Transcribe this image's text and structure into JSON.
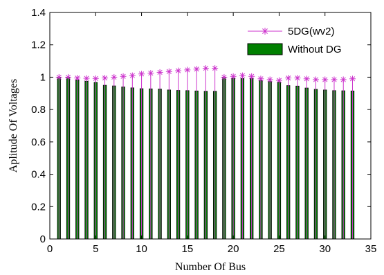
{
  "chart_data": {
    "type": "bar",
    "title": "",
    "xlabel": "Number Of Bus",
    "ylabel": "Aplitude Of Voltages",
    "xlim": [
      0,
      35
    ],
    "ylim": [
      0,
      1.4
    ],
    "xticks": [
      0,
      5,
      10,
      15,
      20,
      25,
      30,
      35
    ],
    "yticks": [
      0,
      0.2,
      0.4,
      0.6,
      0.8,
      1,
      1.2,
      1.4
    ],
    "grid": false,
    "legend_position": "top-right",
    "x": [
      1,
      2,
      3,
      4,
      5,
      6,
      7,
      8,
      9,
      10,
      11,
      12,
      13,
      14,
      15,
      16,
      17,
      18,
      19,
      20,
      21,
      22,
      23,
      24,
      25,
      26,
      27,
      28,
      29,
      30,
      31,
      32,
      33
    ],
    "series": [
      {
        "name": "5DG(wv2)",
        "kind": "stem",
        "color": "#cc33cc",
        "marker": "asterisk",
        "values": [
          1.0,
          1.0,
          0.995,
          0.993,
          0.992,
          0.995,
          1.0,
          1.005,
          1.01,
          1.02,
          1.025,
          1.03,
          1.035,
          1.04,
          1.045,
          1.05,
          1.055,
          1.055,
          1.0,
          1.005,
          1.01,
          1.005,
          0.99,
          0.985,
          0.98,
          0.995,
          0.995,
          0.99,
          0.985,
          0.985,
          0.985,
          0.985,
          0.99
        ]
      },
      {
        "name": "Without DG",
        "kind": "bar",
        "color": "#008000",
        "edge_color": "#000000",
        "values": [
          1.0,
          0.997,
          0.983,
          0.975,
          0.968,
          0.95,
          0.946,
          0.94,
          0.934,
          0.929,
          0.928,
          0.927,
          0.921,
          0.918,
          0.917,
          0.915,
          0.913,
          0.913,
          0.997,
          0.993,
          0.992,
          0.991,
          0.979,
          0.973,
          0.969,
          0.948,
          0.945,
          0.933,
          0.925,
          0.921,
          0.917,
          0.916,
          0.915
        ]
      }
    ]
  }
}
